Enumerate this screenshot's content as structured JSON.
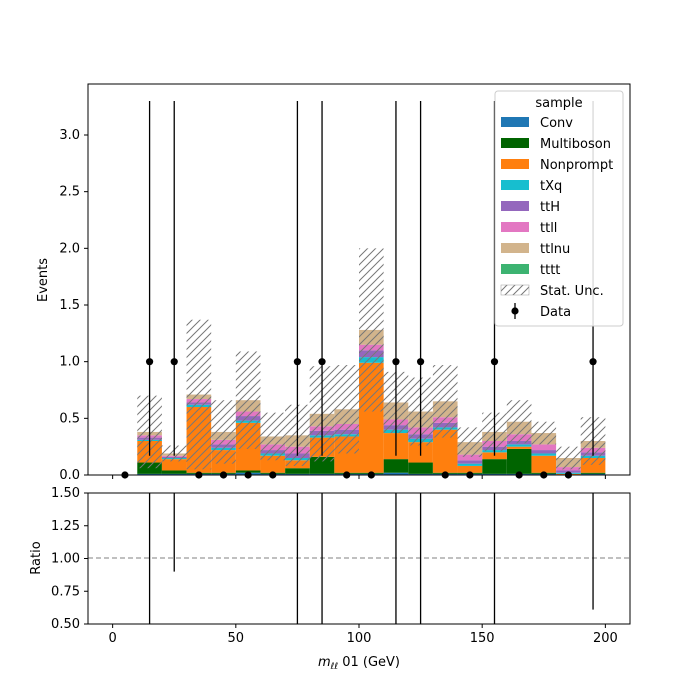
{
  "chart_data": {
    "type": "bar",
    "stacked": true,
    "bin_edges": [
      10,
      20,
      30,
      40,
      50,
      60,
      70,
      80,
      90,
      100,
      110,
      120,
      130,
      140,
      150,
      160,
      170,
      180,
      190,
      200
    ],
    "series": [
      {
        "name": "Conv",
        "color": "#1f77b4",
        "values": [
          0.01,
          0.01,
          0.01,
          0.01,
          0.02,
          0.01,
          0.01,
          0.01,
          0.01,
          0.01,
          0.02,
          0.01,
          0.01,
          0.01,
          0.01,
          0.01,
          0.01,
          0.0,
          0.01
        ]
      },
      {
        "name": "Multiboson",
        "color": "#006400",
        "values": [
          0.1,
          0.03,
          0.01,
          0.01,
          0.02,
          0.01,
          0.05,
          0.15,
          0.01,
          0.01,
          0.12,
          0.1,
          0.01,
          0.01,
          0.13,
          0.22,
          0.01,
          0.0,
          0.01
        ]
      },
      {
        "name": "Nonprompt",
        "color": "#ff7f0e",
        "values": [
          0.19,
          0.1,
          0.58,
          0.2,
          0.42,
          0.15,
          0.07,
          0.17,
          0.32,
          0.97,
          0.23,
          0.18,
          0.38,
          0.06,
          0.06,
          0.02,
          0.15,
          0.01,
          0.13
        ]
      },
      {
        "name": "tXq",
        "color": "#17becf",
        "values": [
          0.01,
          0.01,
          0.02,
          0.02,
          0.02,
          0.02,
          0.02,
          0.02,
          0.02,
          0.05,
          0.03,
          0.03,
          0.02,
          0.02,
          0.02,
          0.02,
          0.02,
          0.01,
          0.02
        ]
      },
      {
        "name": "ttH",
        "color": "#9467bd",
        "values": [
          0.02,
          0.01,
          0.02,
          0.03,
          0.04,
          0.03,
          0.04,
          0.04,
          0.04,
          0.06,
          0.04,
          0.04,
          0.04,
          0.03,
          0.03,
          0.03,
          0.03,
          0.02,
          0.03
        ]
      },
      {
        "name": "ttll",
        "color": "#e377c2",
        "values": [
          0.02,
          0.01,
          0.03,
          0.04,
          0.04,
          0.05,
          0.06,
          0.04,
          0.05,
          0.05,
          0.05,
          0.06,
          0.05,
          0.05,
          0.05,
          0.06,
          0.05,
          0.03,
          0.04
        ]
      },
      {
        "name": "ttlnu",
        "color": "#d2b48c",
        "values": [
          0.03,
          0.02,
          0.04,
          0.07,
          0.1,
          0.07,
          0.1,
          0.11,
          0.13,
          0.13,
          0.15,
          0.14,
          0.14,
          0.11,
          0.08,
          0.11,
          0.1,
          0.08,
          0.06
        ]
      },
      {
        "name": "tttt",
        "color": "#3cb371",
        "values": [
          0.0,
          0.0,
          0.0,
          0.0,
          0.0,
          0.0,
          0.0,
          0.0,
          0.0,
          0.0,
          0.0,
          0.0,
          0.0,
          0.0,
          0.0,
          0.0,
          0.0,
          0.0,
          0.0
        ]
      }
    ],
    "stat_unc": {
      "name": "Stat. Unc.",
      "half_widths": [
        0.32,
        0.07,
        0.66,
        0.28,
        0.43,
        0.21,
        0.27,
        0.42,
        0.39,
        0.72,
        0.27,
        0.3,
        0.32,
        0.13,
        0.17,
        0.19,
        0.1,
        0.1,
        0.21
      ]
    },
    "data": {
      "name": "Data",
      "x": [
        5,
        15,
        25,
        35,
        45,
        55,
        65,
        75,
        85,
        95,
        105,
        115,
        125,
        135,
        145,
        155,
        165,
        175,
        185,
        195
      ],
      "y": [
        0,
        1,
        1,
        0,
        0,
        0,
        0,
        1,
        1,
        0,
        0,
        1,
        1,
        0,
        0,
        1,
        0,
        0,
        0,
        1
      ],
      "yerr_low": [
        0,
        0.83,
        0.83,
        0,
        0,
        0,
        0,
        0.83,
        0.83,
        0,
        0,
        0.83,
        0.83,
        0,
        0,
        0.83,
        0,
        0,
        0,
        0.83
      ],
      "yerr_high": [
        0,
        2.3,
        2.3,
        0,
        0,
        0,
        0,
        2.3,
        2.3,
        0,
        0,
        2.3,
        2.3,
        0,
        0,
        2.3,
        0,
        0,
        0,
        2.3
      ]
    },
    "ratio": {
      "x": [
        15,
        25,
        75,
        85,
        115,
        125,
        155,
        195
      ],
      "low": [
        0.5,
        0.9,
        0.5,
        0.5,
        0.5,
        0.5,
        0.5,
        0.61
      ],
      "high": [
        1.5,
        1.5,
        1.5,
        1.5,
        1.5,
        1.5,
        1.5,
        1.5
      ]
    },
    "xlim": [
      -10,
      210
    ],
    "ylim": [
      0,
      3.45
    ],
    "ratio_ylim": [
      0.5,
      1.5
    ],
    "xticks": [
      "0",
      "50",
      "100",
      "150",
      "200"
    ],
    "yticks": [
      "0.0",
      "0.5",
      "1.0",
      "1.5",
      "2.0",
      "2.5",
      "3.0"
    ],
    "ratio_yticks": [
      "0.50",
      "0.75",
      "1.00",
      "1.25",
      "1.50"
    ],
    "ylabel": "Events",
    "ratio_ylabel": "Ratio",
    "xlabel_main": "m",
    "xlabel_sub": "ℓℓ",
    "xlabel_rest": " 01 (GeV)",
    "legend_title": "sample",
    "legend_loc": "top-right",
    "grid": false
  }
}
